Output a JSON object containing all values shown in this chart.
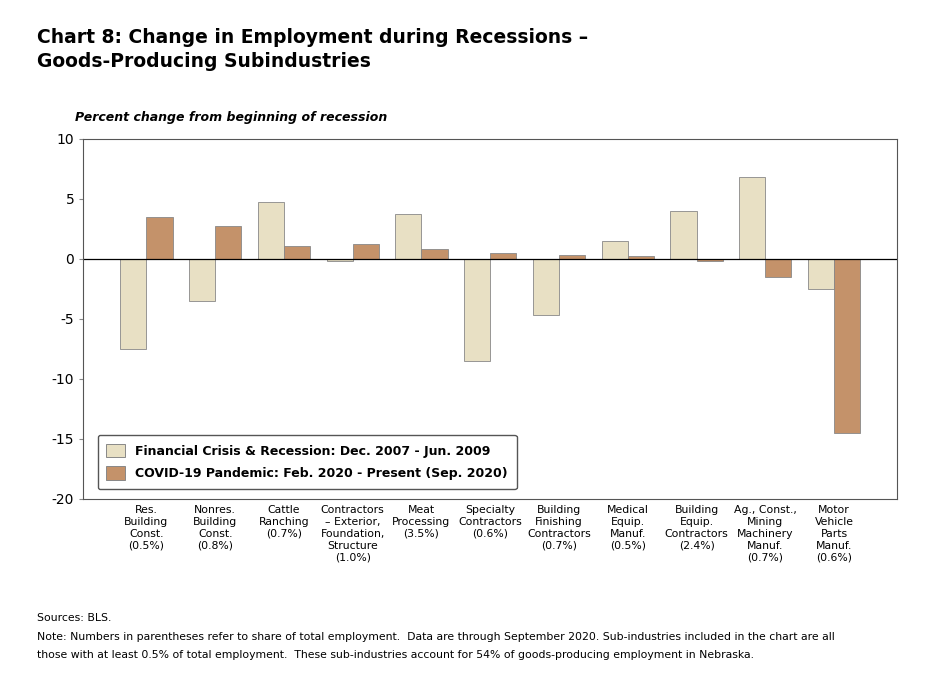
{
  "title": "Chart 8: Change in Employment during Recessions –\nGoods-Producing Subindustries",
  "ylabel": "Percent change from beginning of recession",
  "ylim": [
    -20,
    10
  ],
  "yticks": [
    -20,
    -15,
    -10,
    -5,
    0,
    5,
    10
  ],
  "categories": [
    "Res.\nBuilding\nConst.\n(0.5%)",
    "Nonres.\nBuilding\nConst.\n(0.8%)",
    "Cattle\nRanching\n(0.7%)",
    "Contractors\n– Exterior,\nFoundation,\nStructure\n(1.0%)",
    "Meat\nProcessing\n(3.5%)",
    "Specialty\nContractors\n(0.6%)",
    "Building\nFinishing\nContractors\n(0.7%)",
    "Medical\nEquip.\nManuf.\n(0.5%)",
    "Building\nEquip.\nContractors\n(2.4%)",
    "Ag., Const.,\nMining\nMachinery\nManuf.\n(0.7%)",
    "Motor\nVehicle\nParts\nManuf.\n(0.6%)"
  ],
  "financial_crisis": [
    -7.5,
    -3.5,
    4.7,
    -0.2,
    3.7,
    -8.5,
    -4.7,
    1.5,
    4.0,
    6.8,
    -2.5
  ],
  "covid": [
    3.5,
    2.7,
    1.1,
    1.2,
    0.8,
    0.5,
    0.3,
    0.2,
    -0.2,
    -1.5,
    -14.5
  ],
  "bar_color_fc": "#e8e0c4",
  "bar_color_covid": "#c4926a",
  "bar_edgecolor": "#888888",
  "legend_fc": "Financial Crisis & Recession: Dec. 2007 - Jun. 2009",
  "legend_covid": "COVID-19 Pandemic: Feb. 2020 - Present (Sep. 2020)",
  "source_line1": "Sources: BLS.",
  "source_line2": "Note: Numbers in parentheses refer to share of total employment.  Data are through September 2020. Sub-industries included in the chart are all",
  "source_line3": "those with at least 0.5% of total employment.  These sub-industries account for 54% of goods-producing employment in Nebraska.",
  "background_color": "#ffffff"
}
